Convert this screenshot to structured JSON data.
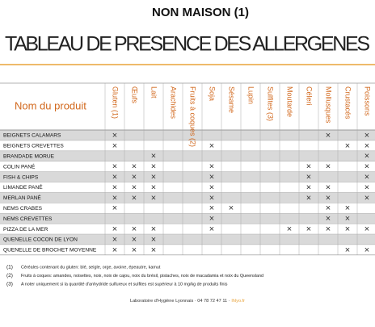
{
  "header": {
    "subtitle": "NON MAISON (1)",
    "title": "TABLEAU DE PRESENCE DES ALLERGENES"
  },
  "table": {
    "name_header": "Nom du produit",
    "columns": [
      "Gluten (1)",
      "Œufs",
      "Lait",
      "Arachides",
      "Fruits à coques (2)",
      "Soja",
      "Sésame",
      "Lupin",
      "Sulfites (3)",
      "Moutarde",
      "Céleri",
      "Mollusques",
      "Crustacés",
      "Poissons"
    ],
    "rows": [
      {
        "name": "BEIGNETS CALAMARS",
        "cells": [
          "×",
          null,
          null,
          null,
          null,
          null,
          null,
          null,
          null,
          null,
          null,
          "×",
          null,
          "×"
        ]
      },
      {
        "name": "BEIGNETS CREVETTES",
        "cells": [
          "×",
          null,
          null,
          null,
          null,
          "×",
          null,
          null,
          null,
          null,
          null,
          null,
          "×",
          "×"
        ]
      },
      {
        "name": "BRANDADE MORUE",
        "cells": [
          null,
          null,
          "×",
          null,
          null,
          null,
          null,
          null,
          null,
          null,
          null,
          null,
          null,
          "×"
        ]
      },
      {
        "name": "COLIN PANÉ",
        "cells": [
          "×",
          "×",
          "×",
          null,
          null,
          "×",
          null,
          null,
          null,
          null,
          "×",
          "×",
          null,
          "×"
        ]
      },
      {
        "name": "FISH & CHIPS",
        "cells": [
          "×",
          "×",
          "×",
          null,
          null,
          "×",
          null,
          null,
          null,
          null,
          "×",
          null,
          null,
          "×"
        ]
      },
      {
        "name": "LIMANDE PANÉ",
        "cells": [
          "×",
          "×",
          "×",
          null,
          null,
          "×",
          null,
          null,
          null,
          null,
          "×",
          "×",
          null,
          "×"
        ]
      },
      {
        "name": "MERLAN PANÉ",
        "cells": [
          "×",
          "×",
          "×",
          null,
          null,
          "×",
          null,
          null,
          null,
          null,
          "×",
          "×",
          null,
          "×"
        ]
      },
      {
        "name": "NEMS CRABES",
        "cells": [
          "×",
          null,
          null,
          null,
          null,
          "×",
          "×",
          null,
          null,
          null,
          null,
          "×",
          "×",
          null
        ]
      },
      {
        "name": "NEMS CREVETTES",
        "cells": [
          null,
          null,
          null,
          null,
          null,
          "×",
          null,
          null,
          null,
          null,
          null,
          "×",
          "×",
          null
        ]
      },
      {
        "name": "PIZZA DE LA MER",
        "cells": [
          "×",
          "×",
          "×",
          null,
          null,
          "×",
          null,
          null,
          null,
          "×",
          "×",
          "×",
          "×",
          "×"
        ]
      },
      {
        "name": "QUENELLE COCON DE LYON",
        "cells": [
          "×",
          "×",
          "×",
          null,
          null,
          null,
          null,
          null,
          null,
          null,
          null,
          null,
          null,
          null
        ]
      },
      {
        "name": "QUENELLE DE BROCHET MOYENNE",
        "cells": [
          "×",
          "×",
          "×",
          null,
          null,
          null,
          null,
          null,
          null,
          null,
          null,
          null,
          "×",
          "×"
        ]
      }
    ]
  },
  "notes": [
    {
      "ref": "(1)",
      "text": "Céréales contenant du gluten: blé, seigle, orge, avoine, épeautre, kamut"
    },
    {
      "ref": "(2)",
      "text": "Fruits à coques: amandes, noisettes, noix, noix de cajou, noix du brésil, pistaches, noix de macadamia et noix du Queensland"
    },
    {
      "ref": "(3)",
      "text": "A noter uniquement si la quantité d'anhydride sulfureux et sulfites est supérieur à 10 mg/kg de produits finis"
    }
  ],
  "footer": {
    "text": "Laboratoire d'Hygiène Lyonnais · 04 78 72 47 11 ·",
    "link": "lhlyo.fr"
  }
}
